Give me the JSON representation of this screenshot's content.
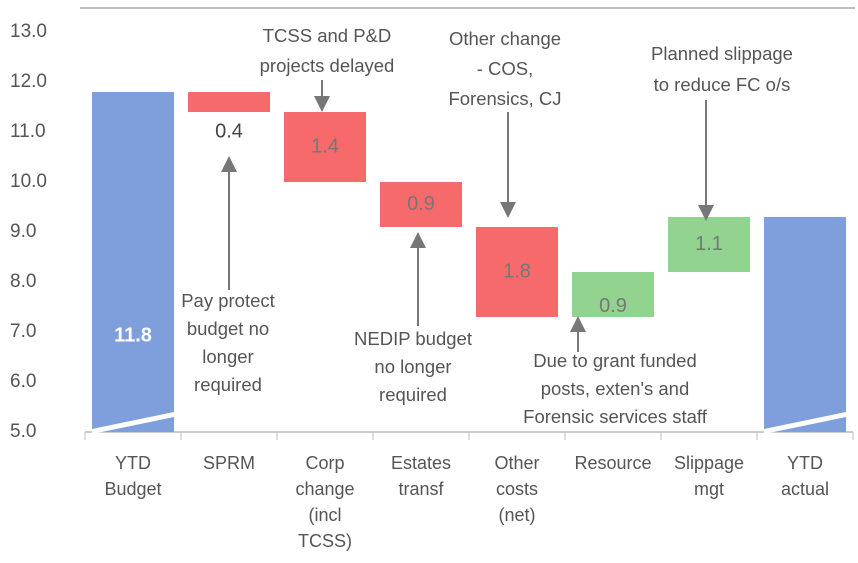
{
  "chart_data": {
    "type": "waterfall",
    "categories": [
      "YTD Budget",
      "SPRM",
      "Corp change (incl TCSS)",
      "Estates transf",
      "Other costs (net)",
      "Resource",
      "Slippage mgt",
      "YTD actual"
    ],
    "measure": [
      "total",
      "relative",
      "relative",
      "relative",
      "relative",
      "relative",
      "relative",
      "total"
    ],
    "values": [
      11.8,
      -0.4,
      -1.4,
      -0.9,
      -1.8,
      0.9,
      1.1,
      9.3
    ],
    "value_labels": [
      "11.8",
      "0.4",
      "1.4",
      "0.9",
      "1.8",
      "0.9",
      "1.1",
      "9.3"
    ],
    "colors": {
      "total": "#7f9fdc",
      "decrease": "#f76a6c",
      "increase": "#92d38f"
    },
    "ylim": [
      5,
      13
    ],
    "yticks": [
      {
        "value": 5,
        "label": "5.0"
      },
      {
        "value": 6,
        "label": "6.0"
      },
      {
        "value": 7,
        "label": "7.0"
      },
      {
        "value": 8,
        "label": "8.0"
      },
      {
        "value": 9,
        "label": "9.0"
      },
      {
        "value": 10,
        "label": "10.0"
      },
      {
        "value": 11,
        "label": "11.0"
      },
      {
        "value": 12,
        "label": "12.0"
      },
      {
        "value": 13,
        "label": "13.0"
      }
    ],
    "annotations": [
      {
        "lines": [
          "TCSS and P&D",
          "projects delayed"
        ]
      },
      {
        "lines": [
          "Other change",
          "- COS,",
          "Forensics, CJ"
        ]
      },
      {
        "lines": [
          "Planned slippage",
          "to reduce FC o/s"
        ]
      },
      {
        "lines": [
          "Pay protect",
          "budget no",
          "longer",
          "required"
        ]
      },
      {
        "lines": [
          "NEDIP budget",
          "no longer",
          "required"
        ]
      },
      {
        "lines": [
          "Due to grant funded",
          "posts, exten's and",
          "Forensic services staff"
        ]
      }
    ]
  }
}
